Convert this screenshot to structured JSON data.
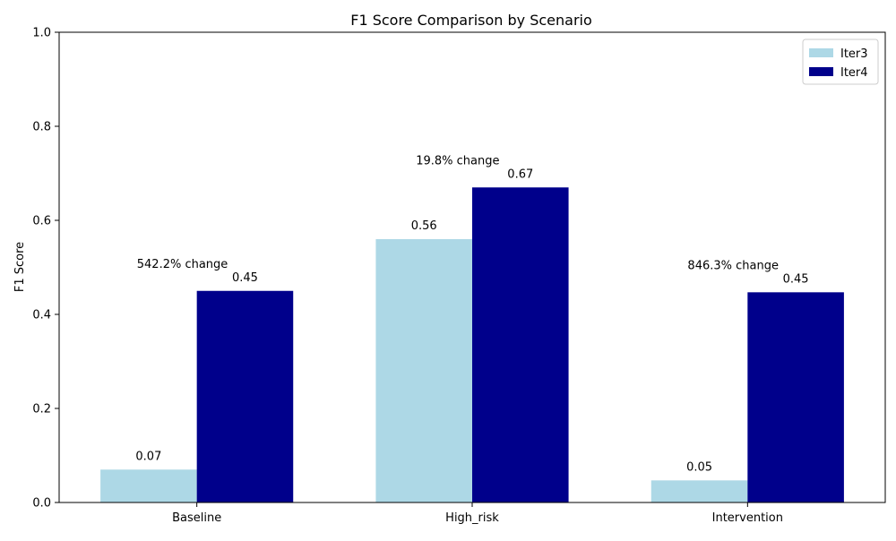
{
  "chart_data": {
    "type": "bar",
    "title": "F1 Score Comparison by Scenario",
    "xlabel": "",
    "ylabel": "F1 Score",
    "ylim": [
      0,
      1.0
    ],
    "yticks": [
      "0.0",
      "0.2",
      "0.4",
      "0.6",
      "0.8",
      "1.0"
    ],
    "ytick_values": [
      0,
      0.2,
      0.4,
      0.6,
      0.8,
      1.0
    ],
    "categories": [
      "Baseline",
      "High_risk",
      "Intervention"
    ],
    "series": [
      {
        "name": "Iter3",
        "color": "#add8e6",
        "values": [
          0.07,
          0.56,
          0.047
        ],
        "labels": [
          "0.07",
          "0.56",
          "0.05"
        ]
      },
      {
        "name": "Iter4",
        "color": "#00008b",
        "values": [
          0.45,
          0.67,
          0.447
        ],
        "labels": [
          "0.45",
          "0.67",
          "0.45"
        ]
      }
    ],
    "annotations": [
      "542.2% change",
      "19.8% change",
      "846.3% change"
    ],
    "legend_position": "top-right",
    "grid": false
  }
}
